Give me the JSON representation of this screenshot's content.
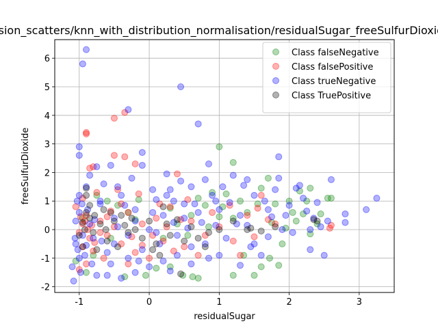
{
  "chart_data": {
    "type": "scatter",
    "title": "fusion_scatters/knn_with_distribution_normalisation/residualSugar_freeSulfurDioxide",
    "xlabel": "residualSugar",
    "ylabel": "freeSulfurDioxide",
    "xlim": [
      -1.35,
      3.5
    ],
    "ylim": [
      -2.2,
      6.65
    ],
    "xticks": [
      -1,
      0,
      1,
      2,
      3
    ],
    "yticks": [
      -2,
      -1,
      0,
      1,
      2,
      3,
      4,
      5,
      6
    ],
    "grid": true,
    "legend_position": "upper-right",
    "point_alpha": 0.3,
    "series": [
      {
        "name": "Class falseNegative",
        "color": "#008000",
        "points": [
          [
            0.3,
            -1.3
          ],
          [
            0.48,
            -1.6
          ],
          [
            0.7,
            -1.7
          ],
          [
            0.62,
            -1.65
          ],
          [
            1.2,
            -1.6
          ],
          [
            1.5,
            -1.6
          ],
          [
            1.6,
            -1.3
          ],
          [
            1.72,
            -1.0
          ],
          [
            1.85,
            -1.25
          ],
          [
            1.0,
            2.9
          ],
          [
            1.2,
            2.35
          ],
          [
            1.7,
            1.8
          ],
          [
            2.3,
            1.45
          ],
          [
            2.6,
            1.1
          ],
          [
            2.55,
            1.1
          ],
          [
            2.2,
            0.55
          ],
          [
            2.4,
            0.2
          ],
          [
            1.8,
            0.9
          ],
          [
            1.3,
            1.0
          ],
          [
            1.1,
            1.25
          ],
          [
            0.9,
            1.3
          ],
          [
            0.8,
            0.85
          ],
          [
            1.0,
            0.45
          ],
          [
            0.6,
            0.5
          ],
          [
            1.4,
            0.6
          ],
          [
            1.55,
            0.9
          ],
          [
            2.05,
            0.6
          ],
          [
            2.1,
            0.3
          ],
          [
            1.75,
            0.25
          ],
          [
            1.9,
            -0.5
          ],
          [
            2.3,
            -0.15
          ],
          [
            0.2,
            -0.3
          ],
          [
            0.4,
            0.2
          ],
          [
            -0.6,
            1.0
          ],
          [
            -0.75,
            1.2
          ],
          [
            -0.45,
            0.85
          ],
          [
            -0.2,
            0.35
          ],
          [
            -0.05,
            -1.6
          ],
          [
            0.1,
            -1.35
          ],
          [
            -0.35,
            -1.65
          ],
          [
            -0.9,
            -1.5
          ],
          [
            -1.05,
            -1.1
          ],
          [
            -0.95,
            0.4
          ],
          [
            -0.55,
            -0.3
          ],
          [
            0.85,
            0.1
          ],
          [
            1.2,
            0.4
          ],
          [
            1.35,
            -0.9
          ],
          [
            2.0,
            1.0
          ],
          [
            2.15,
            1.35
          ],
          [
            0.7,
            1.1
          ],
          [
            1.05,
            0.8
          ],
          [
            -0.3,
            0.6
          ],
          [
            -0.15,
            1.05
          ],
          [
            0.55,
            -0.2
          ],
          [
            1.6,
            1.45
          ],
          [
            1.95,
            0.05
          ],
          [
            2.45,
            0.55
          ],
          [
            2.25,
            1.0
          ],
          [
            -0.8,
            -0.9
          ],
          [
            0.3,
            0.75
          ]
        ]
      },
      {
        "name": "Class falsePositive",
        "color": "#ff0000",
        "points": [
          [
            -0.9,
            3.4
          ],
          [
            -0.9,
            3.35
          ],
          [
            -0.35,
            4.1
          ],
          [
            -0.5,
            3.9
          ],
          [
            -0.85,
            2.15
          ],
          [
            -0.8,
            2.2
          ],
          [
            -0.5,
            2.6
          ],
          [
            -0.35,
            2.55
          ],
          [
            -0.2,
            2.3
          ],
          [
            0.4,
            1.95
          ],
          [
            -0.9,
            0.5
          ],
          [
            -0.95,
            0.2
          ],
          [
            -1.0,
            -0.1
          ],
          [
            -0.85,
            -0.3
          ],
          [
            -0.95,
            -0.6
          ],
          [
            -0.8,
            -0.75
          ],
          [
            -0.7,
            0.3
          ],
          [
            -0.6,
            -0.2
          ],
          [
            -0.5,
            0.1
          ],
          [
            -0.4,
            -0.5
          ],
          [
            -0.3,
            0.6
          ],
          [
            -0.2,
            -0.8
          ],
          [
            -0.1,
            0.2
          ],
          [
            0.0,
            -1.0
          ],
          [
            0.1,
            0.4
          ],
          [
            0.2,
            -0.4
          ],
          [
            0.3,
            0.8
          ],
          [
            0.5,
            -0.6
          ],
          [
            0.6,
            0.3
          ],
          [
            0.8,
            -0.2
          ],
          [
            1.0,
            0.1
          ],
          [
            1.2,
            -0.4
          ],
          [
            1.3,
            -0.9
          ],
          [
            1.4,
            0.5
          ],
          [
            1.6,
            1.2
          ],
          [
            1.8,
            0.2
          ],
          [
            2.6,
            0.15
          ],
          [
            2.58,
            0.05
          ],
          [
            -0.75,
            1.3
          ],
          [
            -0.45,
            1.4
          ],
          [
            -1.05,
            0.8
          ],
          [
            -0.95,
            1.1
          ],
          [
            -0.9,
            -1.2
          ],
          [
            -1.0,
            -1.4
          ],
          [
            -0.65,
            -1.0
          ],
          [
            -0.3,
            -1.2
          ],
          [
            0.05,
            -0.2
          ],
          [
            0.15,
            0.9
          ],
          [
            0.45,
            0.35
          ],
          [
            0.7,
            -0.9
          ],
          [
            -0.55,
            0.65
          ],
          [
            -0.15,
            1.25
          ],
          [
            -0.88,
            0.0
          ],
          [
            -0.92,
            0.3
          ],
          [
            -0.98,
            0.45
          ],
          [
            -0.82,
            0.15
          ],
          [
            -0.78,
            -0.45
          ],
          [
            -0.7,
            -0.1
          ],
          [
            -0.6,
            0.45
          ],
          [
            -0.4,
            0.9
          ],
          [
            -0.25,
            -0.25
          ],
          [
            0.25,
            0.1
          ],
          [
            0.35,
            -0.75
          ],
          [
            0.9,
            0.6
          ],
          [
            1.15,
            0.85
          ],
          [
            1.5,
            -0.25
          ],
          [
            1.7,
            0.35
          ],
          [
            1.55,
            0.75
          ],
          [
            -0.1,
            -0.55
          ],
          [
            0.55,
            1.05
          ]
        ]
      },
      {
        "name": "Class trueNegative",
        "color": "#0000ff",
        "points": [
          [
            -0.9,
            6.3
          ],
          [
            -0.95,
            5.8
          ],
          [
            0.45,
            5.0
          ],
          [
            -0.3,
            4.2
          ],
          [
            0.7,
            3.7
          ],
          [
            -1.0,
            2.9
          ],
          [
            -1.0,
            2.6
          ],
          [
            -0.75,
            2.2
          ],
          [
            -0.55,
            2.25
          ],
          [
            -0.1,
            2.7
          ],
          [
            -0.1,
            2.25
          ],
          [
            0.85,
            2.3
          ],
          [
            1.85,
            2.55
          ],
          [
            1.4,
            1.75
          ],
          [
            1.85,
            1.8
          ],
          [
            2.1,
            1.45
          ],
          [
            2.6,
            1.75
          ],
          [
            2.8,
            0.25
          ],
          [
            3.1,
            0.7
          ],
          [
            3.25,
            1.1
          ],
          [
            2.8,
            0.55
          ],
          [
            2.45,
            0.1
          ],
          [
            2.35,
            0.4
          ],
          [
            2.2,
            1.1
          ],
          [
            1.95,
            0.5
          ],
          [
            1.7,
            0.7
          ],
          [
            1.5,
            1.2
          ],
          [
            1.3,
            0.5
          ],
          [
            1.25,
            0.2
          ],
          [
            1.1,
            -0.3
          ],
          [
            1.0,
            0.7
          ],
          [
            0.9,
            1.2
          ],
          [
            0.75,
            0.25
          ],
          [
            0.6,
            1.5
          ],
          [
            0.5,
            0.9
          ],
          [
            0.4,
            -0.2
          ],
          [
            0.3,
            1.4
          ],
          [
            0.2,
            0.5
          ],
          [
            0.1,
            1.05
          ],
          [
            0.0,
            0.0
          ],
          [
            -0.1,
            -0.7
          ],
          [
            -0.2,
            0.7
          ],
          [
            -0.3,
            -0.2
          ],
          [
            -0.4,
            1.2
          ],
          [
            -0.5,
            0.4
          ],
          [
            -0.6,
            -0.8
          ],
          [
            -0.7,
            0.9
          ],
          [
            -0.8,
            -0.3
          ],
          [
            -0.9,
            1.5
          ],
          [
            -1.0,
            0.6
          ],
          [
            -1.05,
            -0.5
          ],
          [
            -1.1,
            -1.3
          ],
          [
            -1.08,
            -1.8
          ],
          [
            -1.0,
            -1.0
          ],
          [
            -0.95,
            -0.2
          ],
          [
            -0.85,
            0.2
          ],
          [
            -0.75,
            -1.6
          ],
          [
            -0.6,
            -1.6
          ],
          [
            -0.4,
            -1.7
          ],
          [
            -0.2,
            -1.5
          ],
          [
            0.0,
            -1.3
          ],
          [
            0.2,
            -1.1
          ],
          [
            0.4,
            -0.9
          ],
          [
            0.6,
            -0.6
          ],
          [
            0.8,
            -0.5
          ],
          [
            1.0,
            -0.9
          ],
          [
            1.3,
            -1.25
          ],
          [
            1.5,
            -0.5
          ],
          [
            1.7,
            -0.25
          ],
          [
            1.9,
            0.0
          ],
          [
            2.05,
            -0.1
          ],
          [
            2.3,
            0.0
          ],
          [
            2.5,
            -0.9
          ],
          [
            2.3,
            -0.7
          ],
          [
            1.6,
            -0.9
          ],
          [
            1.35,
            1.55
          ],
          [
            1.2,
            1.9
          ],
          [
            1.05,
            1.5
          ],
          [
            0.8,
            1.75
          ],
          [
            0.45,
            1.7
          ],
          [
            0.25,
            1.95
          ],
          [
            0.05,
            1.4
          ],
          [
            -0.25,
            1.8
          ],
          [
            -0.45,
            1.5
          ],
          [
            -0.65,
            1.6
          ],
          [
            -0.85,
            1.9
          ],
          [
            -1.0,
            1.2
          ],
          [
            -1.05,
            0.3
          ],
          [
            -1.02,
            -0.7
          ],
          [
            -0.98,
            -1.5
          ],
          [
            -0.92,
            -0.9
          ],
          [
            -0.88,
            0.7
          ],
          [
            -0.78,
            0.35
          ],
          [
            -0.68,
            -0.4
          ],
          [
            -0.55,
            -1.2
          ],
          [
            -0.45,
            0.1
          ],
          [
            -0.35,
            0.85
          ],
          [
            -0.15,
            -1.1
          ],
          [
            0.05,
            0.6
          ],
          [
            0.15,
            -0.5
          ],
          [
            0.35,
            0.25
          ],
          [
            0.55,
            0.05
          ],
          [
            0.7,
            0.6
          ],
          [
            0.95,
            0.15
          ],
          [
            1.15,
            0.95
          ],
          [
            1.4,
            0.15
          ],
          [
            1.65,
            1.0
          ],
          [
            1.8,
            1.4
          ],
          [
            2.0,
            0.85
          ],
          [
            2.15,
            1.55
          ],
          [
            2.4,
            0.95
          ],
          [
            2.55,
            0.3
          ],
          [
            0.3,
            -1.45
          ],
          [
            -0.3,
            -1.0
          ],
          [
            0.6,
            -1.2
          ],
          [
            0.85,
            -1.0
          ],
          [
            -0.2,
            0.3
          ],
          [
            0.1,
            -0.1
          ],
          [
            -0.7,
            1.0
          ],
          [
            -1.03,
            1.0
          ],
          [
            -1.06,
            -0.3
          ],
          [
            -0.96,
            0.9
          ],
          [
            -0.9,
            -0.55
          ],
          [
            -0.82,
            -1.2
          ],
          [
            0.25,
            1.2
          ],
          [
            0.65,
            0.9
          ],
          [
            1.75,
            0.45
          ],
          [
            2.25,
            0.65
          ],
          [
            1.45,
            -0.6
          ],
          [
            0.5,
            0.4
          ],
          [
            -0.5,
            -0.5
          ],
          [
            0.35,
            1.0
          ],
          [
            0.95,
            1.0
          ]
        ]
      },
      {
        "name": "Class TruePositive",
        "color": "#000000",
        "points": [
          [
            -0.9,
            0.6
          ],
          [
            -0.85,
            0.85
          ],
          [
            -0.95,
            0.25
          ],
          [
            -0.8,
            -0.1
          ],
          [
            -0.7,
            0.2
          ],
          [
            -0.6,
            -0.4
          ],
          [
            -0.5,
            0.3
          ],
          [
            -0.4,
            0.5
          ],
          [
            -0.3,
            -0.1
          ],
          [
            -0.2,
            0.0
          ],
          [
            -0.1,
            -0.3
          ],
          [
            0.0,
            0.3
          ],
          [
            0.1,
            -0.5
          ],
          [
            0.2,
            0.8
          ],
          [
            0.3,
            -0.2
          ],
          [
            0.5,
            -0.4
          ],
          [
            0.6,
            0.1
          ],
          [
            0.8,
            -0.6
          ],
          [
            1.0,
            0.0
          ],
          [
            1.4,
            0.0
          ],
          [
            1.45,
            0.05
          ],
          [
            1.6,
            -0.05
          ],
          [
            1.8,
            0.1
          ],
          [
            2.35,
            0.35
          ],
          [
            2.4,
            0.3
          ],
          [
            -0.9,
            1.45
          ],
          [
            -0.9,
            1.2
          ],
          [
            -0.65,
            0.7
          ],
          [
            -0.55,
            0.6
          ],
          [
            0.45,
            -1.55
          ],
          [
            -0.95,
            -0.6
          ],
          [
            -1.0,
            -0.2
          ],
          [
            -0.75,
            -0.7
          ],
          [
            0.15,
            -0.9
          ],
          [
            0.4,
            0.35
          ],
          [
            0.7,
            -0.3
          ],
          [
            -0.45,
            -0.6
          ],
          [
            -0.25,
            0.4
          ],
          [
            0.05,
            -0.7
          ],
          [
            -0.85,
            0.4
          ],
          [
            -0.92,
            0.0
          ],
          [
            -0.78,
            0.5
          ],
          [
            -0.62,
            0.0
          ],
          [
            -0.35,
            0.15
          ],
          [
            0.25,
            0.2
          ],
          [
            0.85,
            -0.1
          ],
          [
            1.2,
            0.3
          ]
        ]
      }
    ]
  }
}
